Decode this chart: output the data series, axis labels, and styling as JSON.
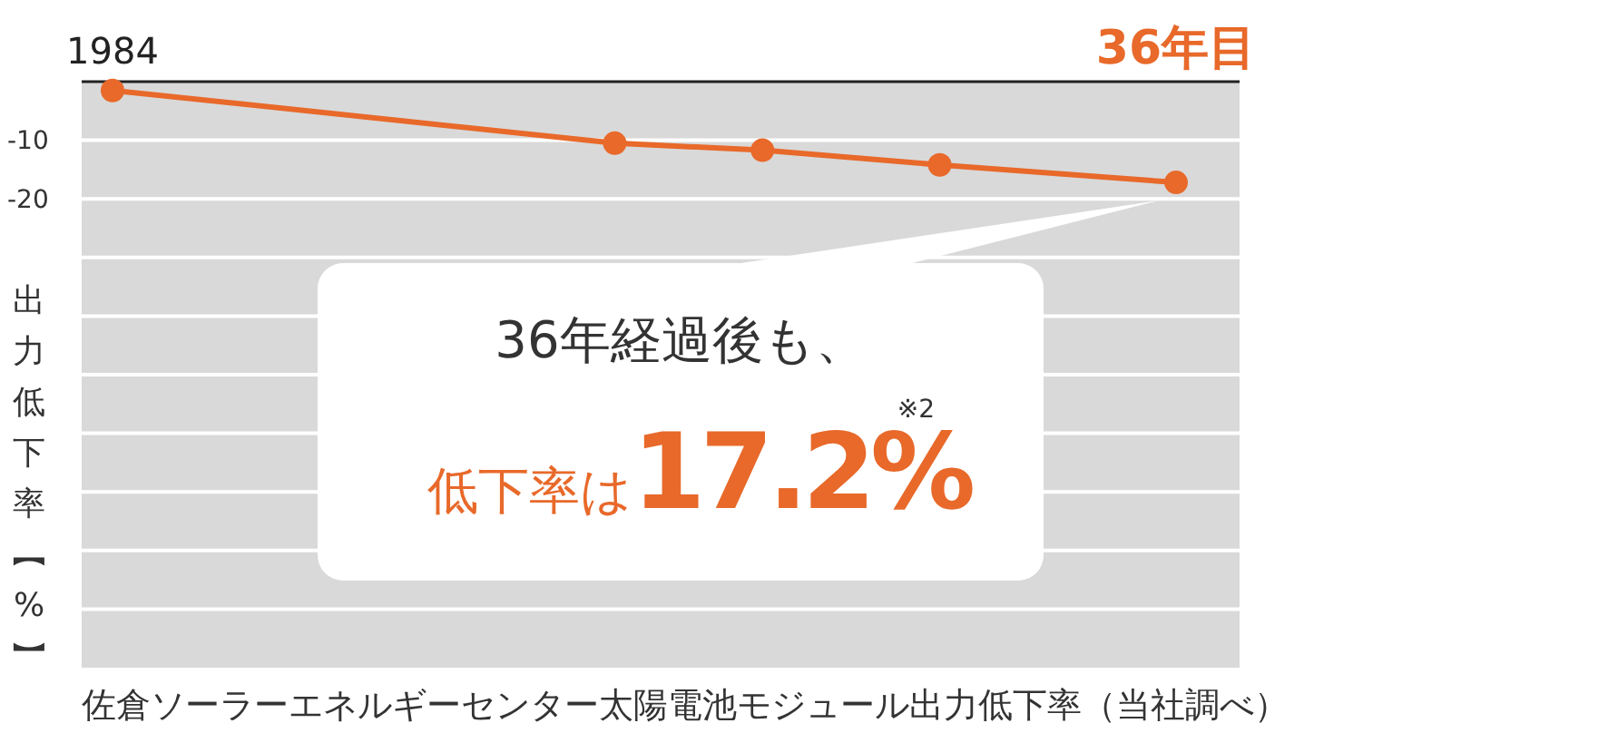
{
  "chart_data": {
    "type": "line",
    "ylabel": "出力低下率【%】",
    "categories": [
      "1984",
      null,
      null,
      null,
      null,
      null,
      null,
      null,
      null,
      null,
      null,
      null,
      null,
      null,
      null,
      null,
      null,
      null,
      null,
      null,
      null,
      null,
      null,
      null,
      null,
      null,
      null,
      null,
      null,
      null,
      null,
      null,
      null,
      null,
      null,
      null,
      "36年目"
    ],
    "series": [
      {
        "color": "#e8692a",
        "values": [
          -1.5,
          null,
          null,
          null,
          null,
          null,
          null,
          null,
          null,
          null,
          null,
          null,
          null,
          null,
          null,
          null,
          null,
          -10.5,
          null,
          null,
          null,
          null,
          -11.7,
          null,
          null,
          null,
          null,
          null,
          -14.2,
          null,
          null,
          null,
          null,
          null,
          null,
          null,
          -17.2
        ]
      }
    ],
    "ylim": [
      -100,
      0
    ],
    "yticks": [
      {
        "value": 0,
        "label": null
      },
      -10,
      -20,
      {
        "value": -30,
        "label": null
      },
      {
        "value": -40,
        "label": null
      },
      {
        "value": -50,
        "label": null
      },
      {
        "value": -60,
        "label": null
      },
      {
        "value": -70,
        "label": null
      },
      {
        "value": -80,
        "label": null
      },
      {
        "value": -90,
        "label": null
      }
    ],
    "grid": "y",
    "marker": "circle",
    "line_style": "solid",
    "annotations": [
      "36年経過後も、",
      "低下率は",
      "17.2%",
      "※2",
      "佐倉ソーラーエネルギーセンター太陽電池モジュール出力低下率（当社調べ）"
    ]
  }
}
